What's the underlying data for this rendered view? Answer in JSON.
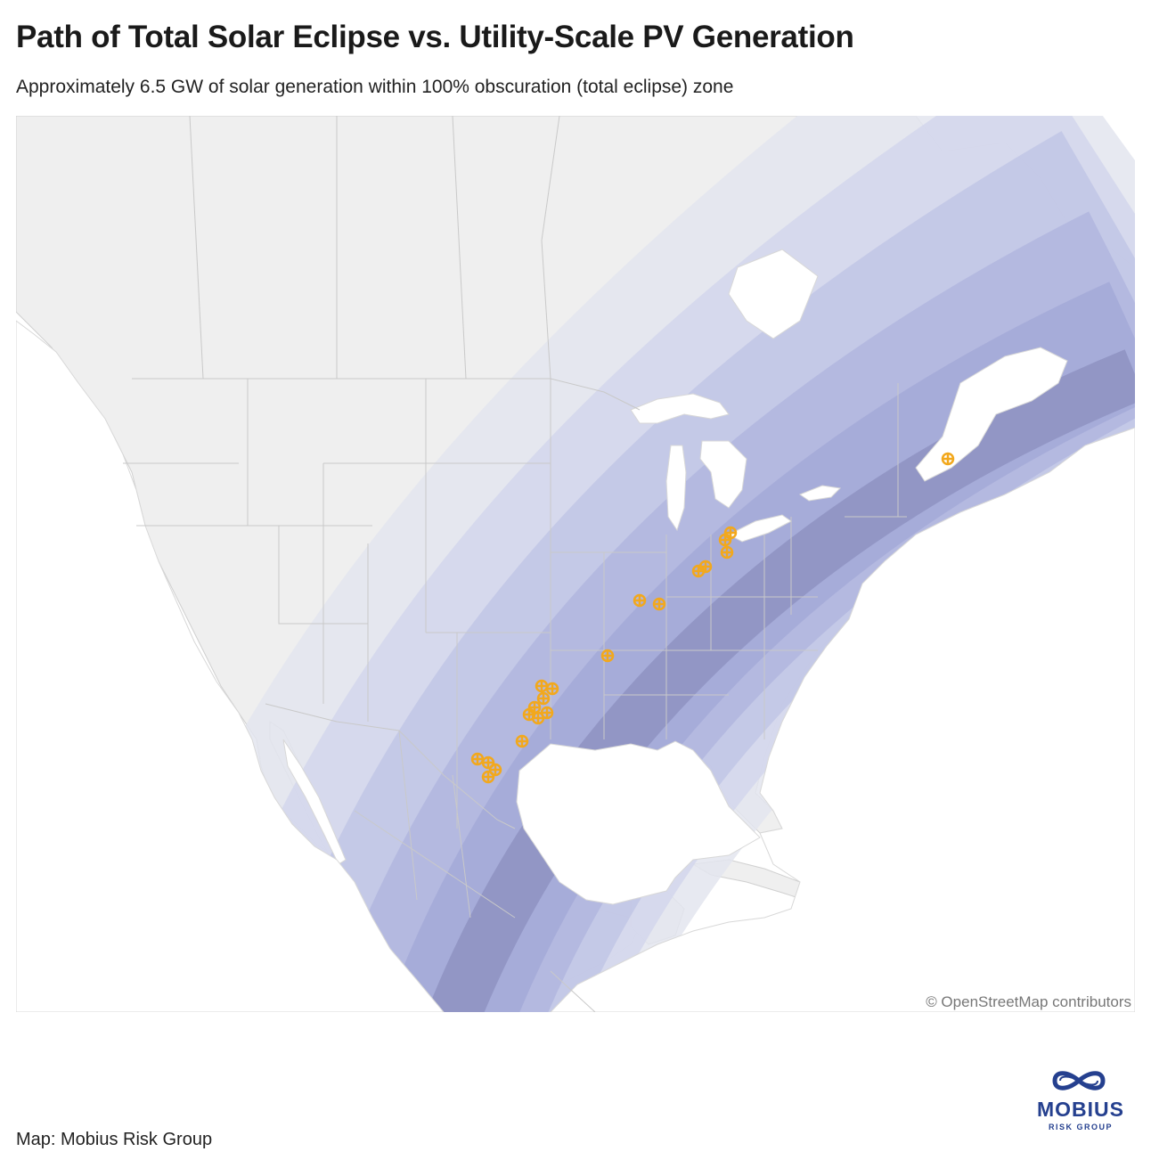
{
  "header": {
    "title": "Path of Total Solar Eclipse vs. Utility-Scale PV Generation",
    "subtitle": "Approximately 6.5 GW of solar generation within 100% obscuration (total eclipse) zone"
  },
  "map": {
    "attribution": "© OpenStreetMap contributors",
    "marker_icon": "solar-site-marker-icon",
    "colors": {
      "land": "#efefef",
      "water": "#ffffff",
      "borders": "#c9c9c9",
      "band_outer": "#e3e5ef",
      "band_2": "#d4d7ec",
      "band_3": "#c2c6e6",
      "band_4": "#b2b7e0",
      "band_5": "#a5abd8",
      "band_total": "#9095c4",
      "marker": "#f2a81d"
    }
  },
  "footer": {
    "credit": "Map: Mobius Risk Group",
    "logo_name": "MOBIUS",
    "logo_tagline": "RISK GROUP",
    "logo_icon": "mobius-infinity-logo-icon",
    "brand_color": "#25408f"
  }
}
